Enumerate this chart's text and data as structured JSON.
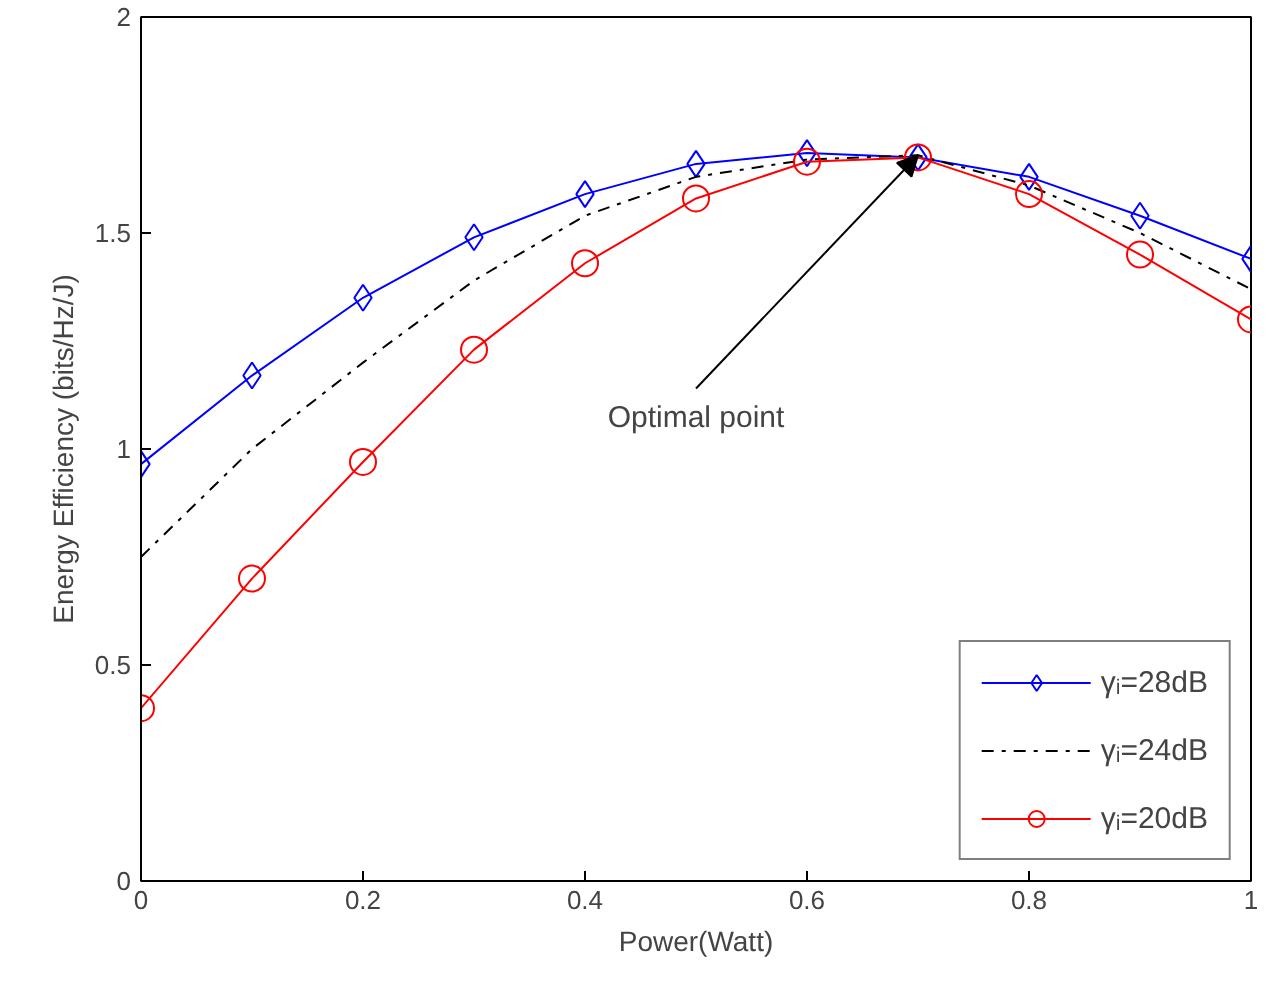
{
  "chart_data": {
    "type": "line",
    "xlabel": "Power(Watt)",
    "ylabel": "Energy Efficiency (bits/Hz/J)",
    "x": [
      0,
      0.1,
      0.2,
      0.3,
      0.4,
      0.5,
      0.6,
      0.7,
      0.8,
      0.9,
      1.0
    ],
    "series": [
      {
        "name": "γᵢ=28dB",
        "color": "#0000ff",
        "marker": "diamond",
        "line_style": "solid",
        "values": [
          0.965,
          1.17,
          1.35,
          1.49,
          1.59,
          1.66,
          1.685,
          1.675,
          1.63,
          1.54,
          1.44
        ]
      },
      {
        "name": "γᵢ=24dB",
        "color": "#000000",
        "marker": "none",
        "line_style": "dashdot",
        "values": [
          0.75,
          1.0,
          1.2,
          1.39,
          1.54,
          1.63,
          1.67,
          1.68,
          1.61,
          1.5,
          1.37
        ]
      },
      {
        "name": "γᵢ=20dB",
        "color": "#ff0000",
        "marker": "circle",
        "line_style": "solid",
        "values": [
          0.4,
          0.7,
          0.97,
          1.23,
          1.43,
          1.58,
          1.665,
          1.675,
          1.59,
          1.45,
          1.3
        ]
      }
    ],
    "xlim": [
      0,
      1
    ],
    "xticks": [
      0,
      0.2,
      0.4,
      0.6,
      0.8,
      1
    ],
    "ylim": [
      0,
      2
    ],
    "yticks": [
      0,
      0.5,
      1,
      1.5,
      2
    ],
    "grid": false,
    "legend": "bottom right",
    "annotations": [
      {
        "text": "Optimal point",
        "x": 0.7,
        "y": 1.68
      }
    ]
  }
}
